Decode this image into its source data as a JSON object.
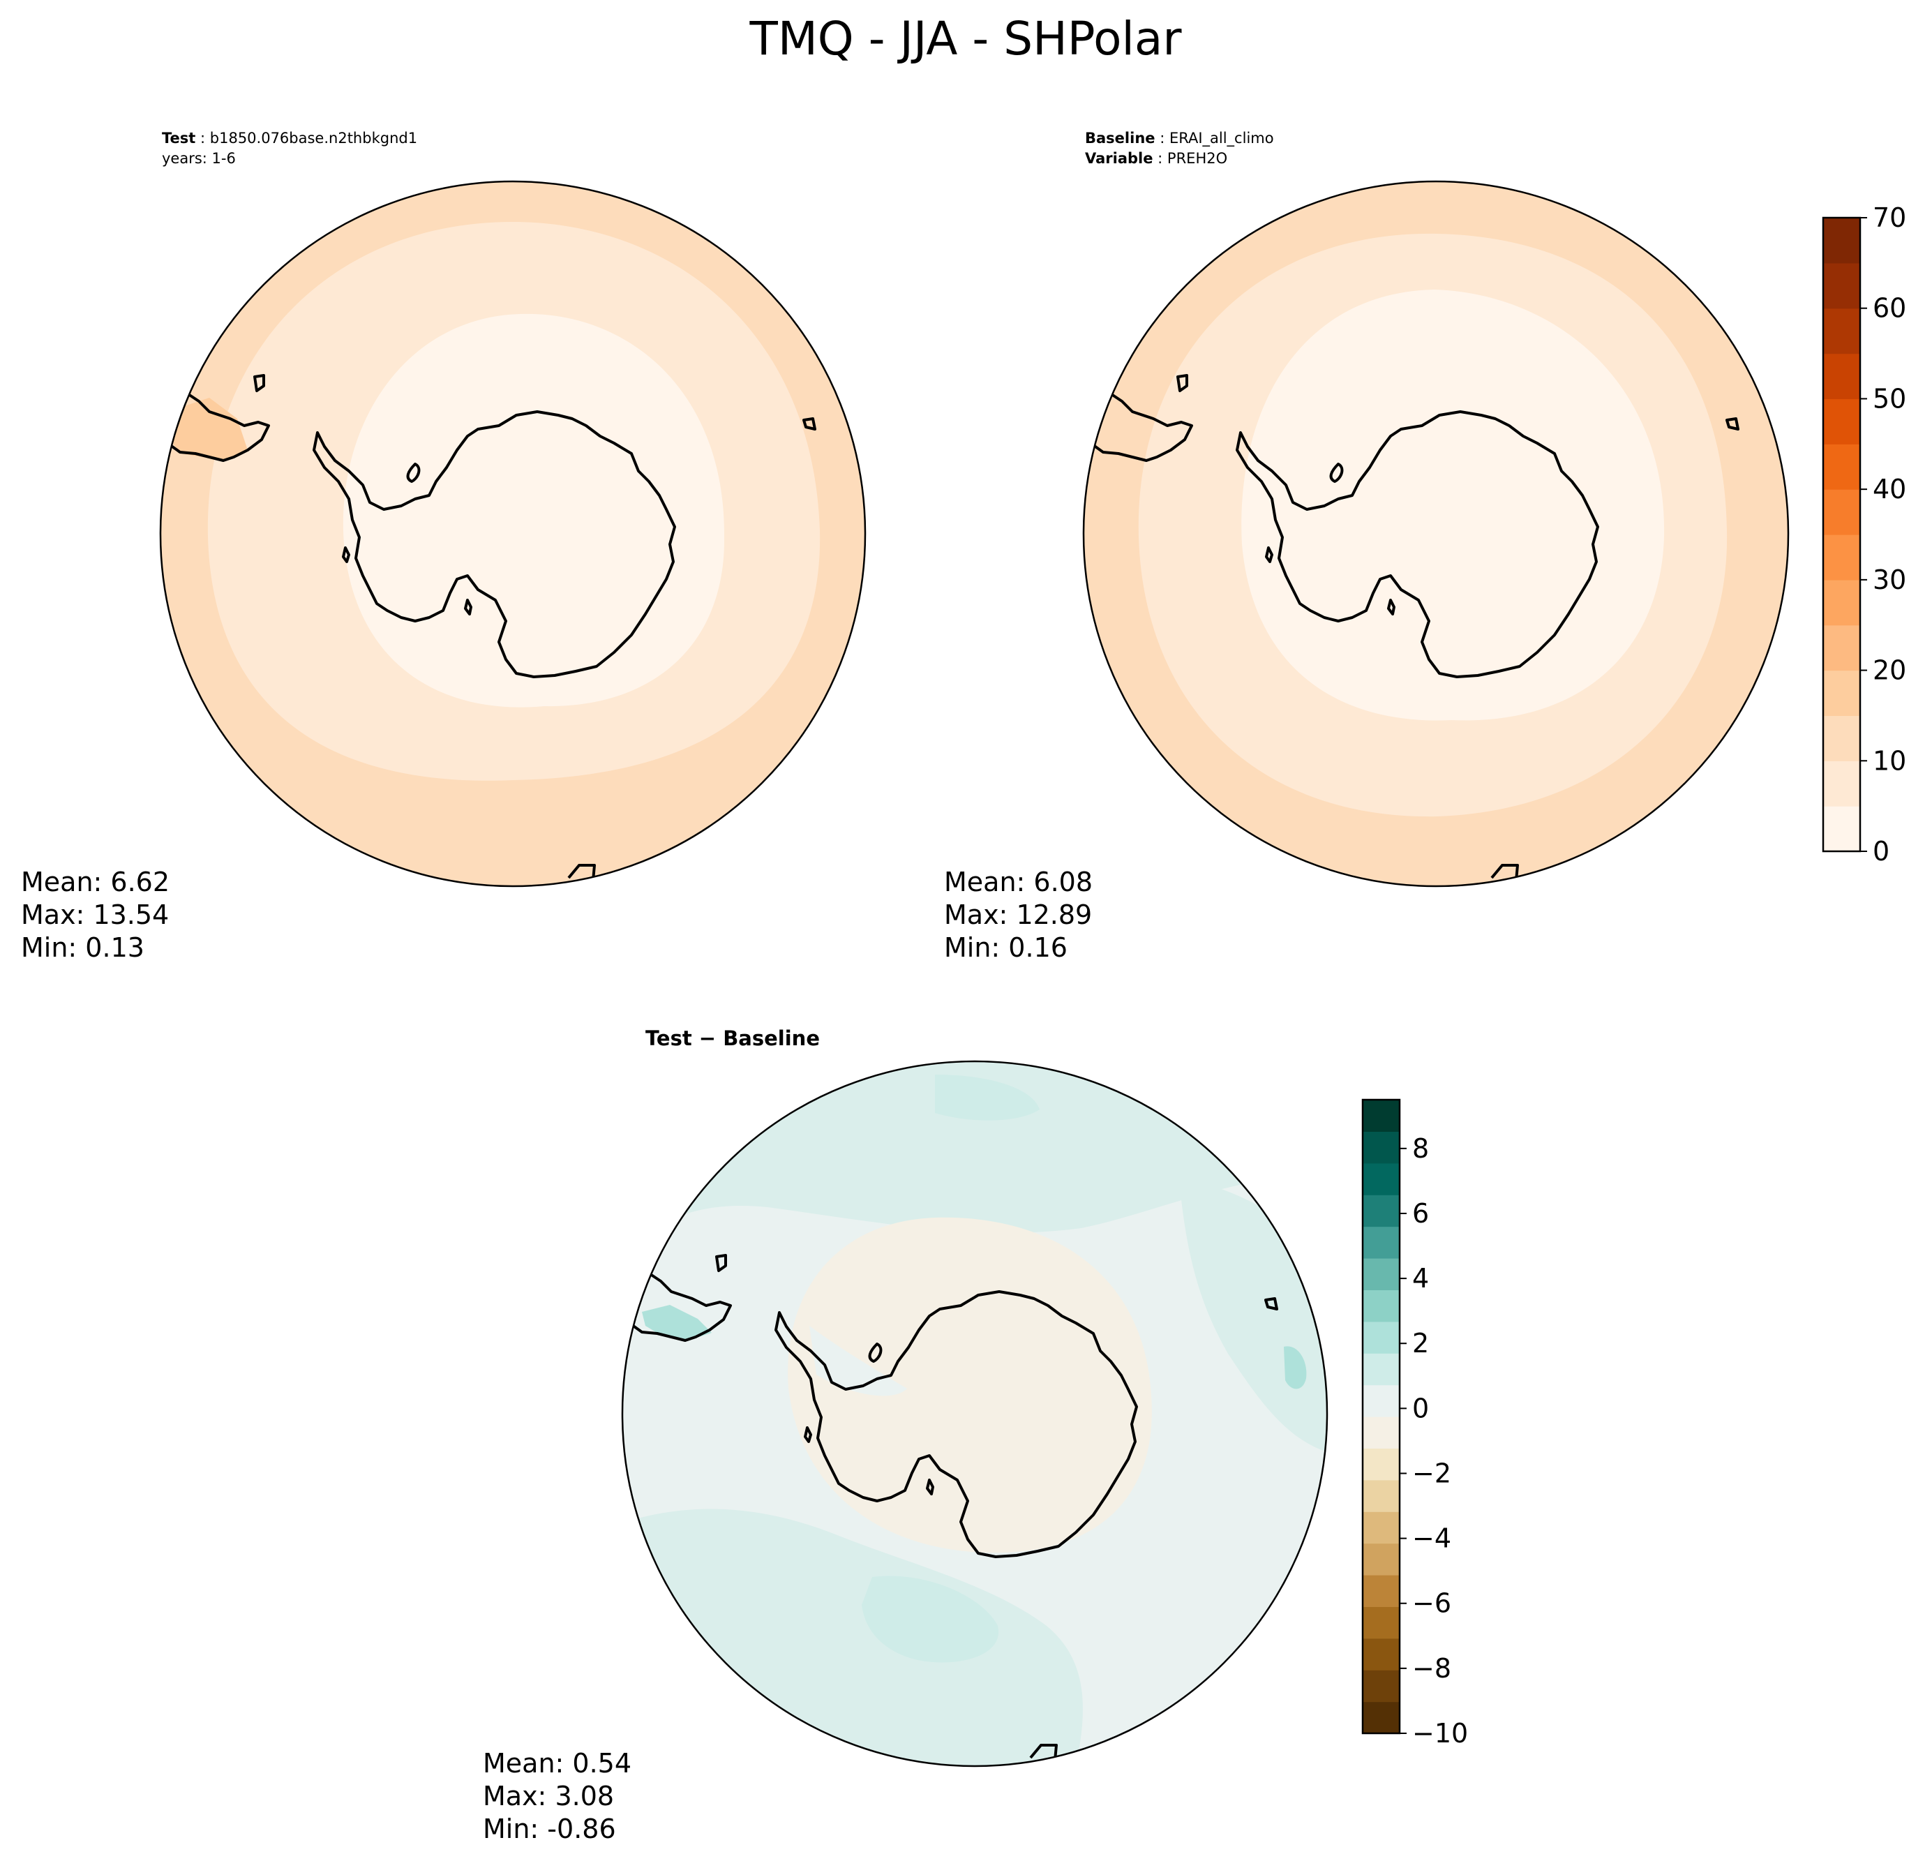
{
  "figure": {
    "title": "TMQ - JJA - SHPolar"
  },
  "colors": {
    "test_baseline_levels": [
      "#fff5eb",
      "#fee9d4",
      "#fddcbb",
      "#fdcd9e",
      "#fdba81",
      "#fda660",
      "#fc9244",
      "#f77d2b",
      "#ef6814",
      "#e05306",
      "#c94302",
      "#ae3803",
      "#962e04",
      "#7f2704"
    ],
    "diff_levels": [
      "#543005",
      "#6e410a",
      "#8a5610",
      "#a56d1f",
      "#bc8438",
      "#d0a35f",
      "#deb97c",
      "#ebd3a3",
      "#f3e6c6",
      "#f5f0e5",
      "#eaf2f1",
      "#cfece8",
      "#aee1da",
      "#8dd1c6",
      "#68b8ad",
      "#439e96",
      "#1e8078",
      "#02685f",
      "#01574d",
      "#003c30"
    ],
    "outline": "#000000"
  },
  "chart_data": [
    {
      "type": "heatmap",
      "panel": "test",
      "label_bold": "Test",
      "label_value": "b1850.076base.n2thbkgnd1",
      "label_line2": "years: 1-6",
      "stats": {
        "mean": "Mean:  6.62",
        "max": "Max: 13.54",
        "min": "Min:  0.13"
      },
      "contour_levels": [
        0,
        5,
        10,
        15,
        20,
        25,
        30,
        35,
        40,
        45,
        50,
        55,
        60,
        65,
        70
      ],
      "regions": [
        {
          "zone": "outer ocean",
          "value": 12.5
        },
        {
          "zone": "mid ring",
          "value": 7.5
        },
        {
          "zone": "antarctic interior",
          "value": 2.5
        }
      ]
    },
    {
      "type": "heatmap",
      "panel": "baseline",
      "label1_bold": "Baseline",
      "label1_value": "ERAI_all_climo",
      "label2_bold": "Variable",
      "label2_value": "PREH2O",
      "stats": {
        "mean": "Mean:  6.08",
        "max": "Max: 12.89",
        "min": "Min:  0.16"
      },
      "colorbar": {
        "ticks": [
          "70",
          "60",
          "50",
          "40",
          "30",
          "20",
          "10",
          "0"
        ],
        "vmin": 0,
        "vmax": 70
      },
      "regions": [
        {
          "zone": "outer ocean",
          "value": 12.5
        },
        {
          "zone": "mid ring",
          "value": 7.5
        },
        {
          "zone": "antarctic interior",
          "value": 2.5
        }
      ]
    },
    {
      "type": "heatmap",
      "panel": "diff",
      "title": "Test − Baseline",
      "stats": {
        "mean": "Mean:  0.54",
        "max": "Max:  3.08",
        "min": "Min: -0.86"
      },
      "colorbar": {
        "ticks": [
          "8",
          "6",
          "4",
          "2",
          "0",
          "−2",
          "−4",
          "−6",
          "−8",
          "−10"
        ],
        "vmin": -10,
        "vmax": 9.5
      },
      "regions": [
        {
          "zone": "general ocean",
          "value": 0.25
        },
        {
          "zone": "southern ocean band",
          "value": 1.0
        },
        {
          "zone": "strong positive pockets",
          "value": 2.0
        },
        {
          "zone": "antarctica",
          "value": -0.25
        }
      ]
    }
  ]
}
